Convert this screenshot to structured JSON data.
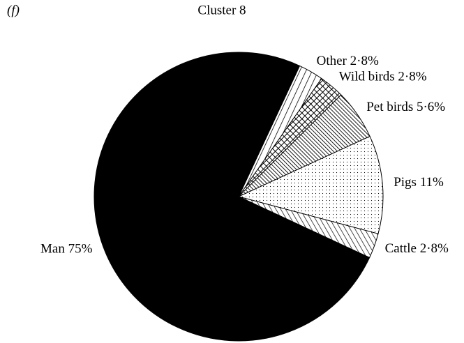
{
  "chart_data": {
    "type": "pie",
    "panel_label": "(f)",
    "title": "Cluster 8",
    "categories": [
      "Other",
      "Wild birds",
      "Pet birds",
      "Pigs",
      "Cattle",
      "Man"
    ],
    "values": [
      2.8,
      2.8,
      5.6,
      11,
      2.8,
      75
    ],
    "value_labels": [
      "2·8%",
      "2·8%",
      "5·6%",
      "11%",
      "2·8%",
      "75%"
    ]
  }
}
